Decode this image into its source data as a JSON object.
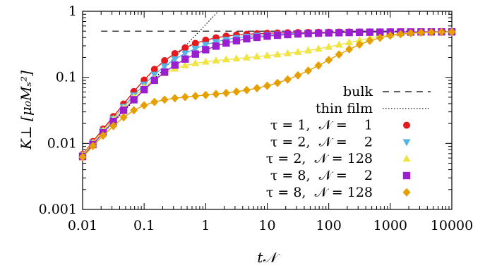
{
  "chart_data": {
    "type": "scatter",
    "xlabel": "t𝒩",
    "ylabel": "K⊥ [μ₀Mₛ²]",
    "xscale": "log",
    "yscale": "log",
    "xlim": [
      0.01,
      10000
    ],
    "ylim": [
      0.001,
      1
    ],
    "xticks": [
      {
        "value": 0.01,
        "label": "0.01"
      },
      {
        "value": 0.1,
        "label": "0.1"
      },
      {
        "value": 1,
        "label": "1"
      },
      {
        "value": 10,
        "label": "10"
      },
      {
        "value": 100,
        "label": "100"
      },
      {
        "value": 1000,
        "label": "1000"
      },
      {
        "value": 10000,
        "label": "10000"
      }
    ],
    "yticks": [
      {
        "value": 0.001,
        "label": "0.001"
      },
      {
        "value": 0.01,
        "label": "0.01"
      },
      {
        "value": 0.1,
        "label": "0.1"
      },
      {
        "value": 1,
        "label": "1"
      }
    ],
    "grid": false,
    "legend_position": "right",
    "reference_lines": [
      {
        "name": "bulk",
        "style": "dashed",
        "color": "#000000",
        "points": [
          [
            0.02,
            0.5
          ],
          [
            10000,
            0.5
          ]
        ]
      },
      {
        "name": "thin film",
        "style": "dotted",
        "color": "#000000",
        "points": [
          [
            0.01,
            0.0067
          ],
          [
            1.6,
            1.0
          ]
        ]
      }
    ],
    "series": [
      {
        "name": "τ = 1,  𝒩 =    1",
        "marker": "circle",
        "color": "#e41a1c",
        "points": [
          [
            0.01,
            0.0068
          ],
          [
            0.0147,
            0.0107
          ],
          [
            0.0215,
            0.0165
          ],
          [
            0.0316,
            0.0255
          ],
          [
            0.0464,
            0.0395
          ],
          [
            0.0681,
            0.061
          ],
          [
            0.1,
            0.091
          ],
          [
            0.147,
            0.132
          ],
          [
            0.215,
            0.179
          ],
          [
            0.316,
            0.229
          ],
          [
            0.464,
            0.28
          ],
          [
            0.681,
            0.327
          ],
          [
            1,
            0.366
          ],
          [
            1.47,
            0.397
          ],
          [
            2.15,
            0.42
          ],
          [
            3.16,
            0.437
          ],
          [
            4.64,
            0.449
          ],
          [
            6.81,
            0.458
          ],
          [
            10,
            0.465
          ],
          [
            14.7,
            0.47
          ],
          [
            21.5,
            0.474
          ],
          [
            31.6,
            0.477
          ],
          [
            46.4,
            0.479
          ],
          [
            68.1,
            0.481
          ],
          [
            100,
            0.483
          ],
          [
            147,
            0.484
          ],
          [
            215,
            0.485
          ],
          [
            316,
            0.486
          ],
          [
            464,
            0.487
          ],
          [
            681,
            0.487
          ],
          [
            1000,
            0.488
          ],
          [
            1470,
            0.488
          ],
          [
            2150,
            0.488
          ],
          [
            3160,
            0.489
          ],
          [
            4640,
            0.489
          ],
          [
            6810,
            0.489
          ],
          [
            10000,
            0.489
          ]
        ]
      },
      {
        "name": "τ = 2,  𝒩 =    2",
        "marker": "triangle-down",
        "color": "#56b4e9",
        "points": [
          [
            0.01,
            0.0066
          ],
          [
            0.0147,
            0.0103
          ],
          [
            0.0215,
            0.0157
          ],
          [
            0.0316,
            0.0238
          ],
          [
            0.0464,
            0.036
          ],
          [
            0.0681,
            0.0535
          ],
          [
            0.1,
            0.078
          ],
          [
            0.147,
            0.11
          ],
          [
            0.215,
            0.147
          ],
          [
            0.316,
            0.188
          ],
          [
            0.464,
            0.231
          ],
          [
            0.681,
            0.273
          ],
          [
            1,
            0.311
          ],
          [
            1.47,
            0.345
          ],
          [
            2.15,
            0.373
          ],
          [
            3.16,
            0.396
          ],
          [
            4.64,
            0.414
          ],
          [
            6.81,
            0.429
          ],
          [
            10,
            0.44
          ],
          [
            14.7,
            0.45
          ],
          [
            21.5,
            0.457
          ],
          [
            31.6,
            0.463
          ],
          [
            46.4,
            0.468
          ],
          [
            68.1,
            0.472
          ],
          [
            100,
            0.475
          ],
          [
            147,
            0.478
          ],
          [
            215,
            0.48
          ],
          [
            316,
            0.482
          ],
          [
            464,
            0.484
          ],
          [
            681,
            0.485
          ],
          [
            1000,
            0.486
          ],
          [
            1470,
            0.487
          ],
          [
            2150,
            0.487
          ],
          [
            3160,
            0.488
          ],
          [
            4640,
            0.488
          ],
          [
            6810,
            0.488
          ],
          [
            10000,
            0.489
          ]
        ]
      },
      {
        "name": "τ = 2,  𝒩 = 128",
        "marker": "triangle-up",
        "color": "#f0e442",
        "points": [
          [
            0.01,
            0.0066
          ],
          [
            0.0147,
            0.0102
          ],
          [
            0.0215,
            0.0155
          ],
          [
            0.0316,
            0.0232
          ],
          [
            0.0464,
            0.0345
          ],
          [
            0.0681,
            0.05
          ],
          [
            0.1,
            0.07
          ],
          [
            0.147,
            0.093
          ],
          [
            0.215,
            0.115
          ],
          [
            0.316,
            0.135
          ],
          [
            0.464,
            0.151
          ],
          [
            0.681,
            0.163
          ],
          [
            1,
            0.172
          ],
          [
            1.47,
            0.179
          ],
          [
            2.15,
            0.186
          ],
          [
            3.16,
            0.192
          ],
          [
            4.64,
            0.199
          ],
          [
            6.81,
            0.206
          ],
          [
            10,
            0.213
          ],
          [
            14.7,
            0.221
          ],
          [
            21.5,
            0.23
          ],
          [
            31.6,
            0.241
          ],
          [
            46.4,
            0.254
          ],
          [
            68.1,
            0.27
          ],
          [
            100,
            0.289
          ],
          [
            147,
            0.311
          ],
          [
            215,
            0.337
          ],
          [
            316,
            0.365
          ],
          [
            464,
            0.394
          ],
          [
            681,
            0.42
          ],
          [
            1000,
            0.442
          ],
          [
            1470,
            0.459
          ],
          [
            2150,
            0.47
          ],
          [
            3160,
            0.477
          ],
          [
            4640,
            0.482
          ],
          [
            6810,
            0.485
          ],
          [
            10000,
            0.487
          ]
        ]
      },
      {
        "name": "τ = 8,  𝒩 =    2",
        "marker": "square",
        "color": "#9b1fd1",
        "points": [
          [
            0.01,
            0.0063
          ],
          [
            0.0147,
            0.0096
          ],
          [
            0.0215,
            0.0145
          ],
          [
            0.0316,
            0.0215
          ],
          [
            0.0464,
            0.0317
          ],
          [
            0.0681,
            0.0458
          ],
          [
            0.1,
            0.065
          ],
          [
            0.147,
            0.09
          ],
          [
            0.215,
            0.12
          ],
          [
            0.316,
            0.153
          ],
          [
            0.464,
            0.189
          ],
          [
            0.681,
            0.225
          ],
          [
            1,
            0.262
          ],
          [
            1.47,
            0.297
          ],
          [
            2.15,
            0.33
          ],
          [
            3.16,
            0.358
          ],
          [
            4.64,
            0.383
          ],
          [
            6.81,
            0.403
          ],
          [
            10,
            0.42
          ],
          [
            14.7,
            0.433
          ],
          [
            21.5,
            0.444
          ],
          [
            31.6,
            0.453
          ],
          [
            46.4,
            0.46
          ],
          [
            68.1,
            0.466
          ],
          [
            100,
            0.471
          ],
          [
            147,
            0.474
          ],
          [
            215,
            0.477
          ],
          [
            316,
            0.48
          ],
          [
            464,
            0.482
          ],
          [
            681,
            0.483
          ],
          [
            1000,
            0.485
          ],
          [
            1470,
            0.486
          ],
          [
            2150,
            0.486
          ],
          [
            3160,
            0.487
          ],
          [
            4640,
            0.488
          ],
          [
            6810,
            0.488
          ],
          [
            10000,
            0.488
          ]
        ]
      },
      {
        "name": "τ = 8,  𝒩 = 128",
        "marker": "diamond",
        "color": "#e69f00",
        "points": [
          [
            0.01,
            0.0062
          ],
          [
            0.0147,
            0.0091
          ],
          [
            0.0215,
            0.0131
          ],
          [
            0.0316,
            0.0183
          ],
          [
            0.0464,
            0.0248
          ],
          [
            0.0681,
            0.0317
          ],
          [
            0.1,
            0.0377
          ],
          [
            0.147,
            0.0424
          ],
          [
            0.215,
            0.0458
          ],
          [
            0.316,
            0.0483
          ],
          [
            0.464,
            0.0503
          ],
          [
            0.681,
            0.0521
          ],
          [
            1,
            0.0539
          ],
          [
            1.47,
            0.0558
          ],
          [
            2.15,
            0.058
          ],
          [
            3.16,
            0.0607
          ],
          [
            4.64,
            0.0641
          ],
          [
            6.81,
            0.0686
          ],
          [
            10,
            0.0745
          ],
          [
            14.7,
            0.0823
          ],
          [
            21.5,
            0.0927
          ],
          [
            31.6,
            0.107
          ],
          [
            46.4,
            0.126
          ],
          [
            68.1,
            0.151
          ],
          [
            100,
            0.183
          ],
          [
            147,
            0.222
          ],
          [
            215,
            0.266
          ],
          [
            316,
            0.313
          ],
          [
            464,
            0.358
          ],
          [
            681,
            0.397
          ],
          [
            1000,
            0.428
          ],
          [
            1470,
            0.451
          ],
          [
            2150,
            0.466
          ],
          [
            3160,
            0.476
          ],
          [
            4640,
            0.482
          ],
          [
            6810,
            0.485
          ],
          [
            10000,
            0.487
          ]
        ]
      }
    ]
  }
}
